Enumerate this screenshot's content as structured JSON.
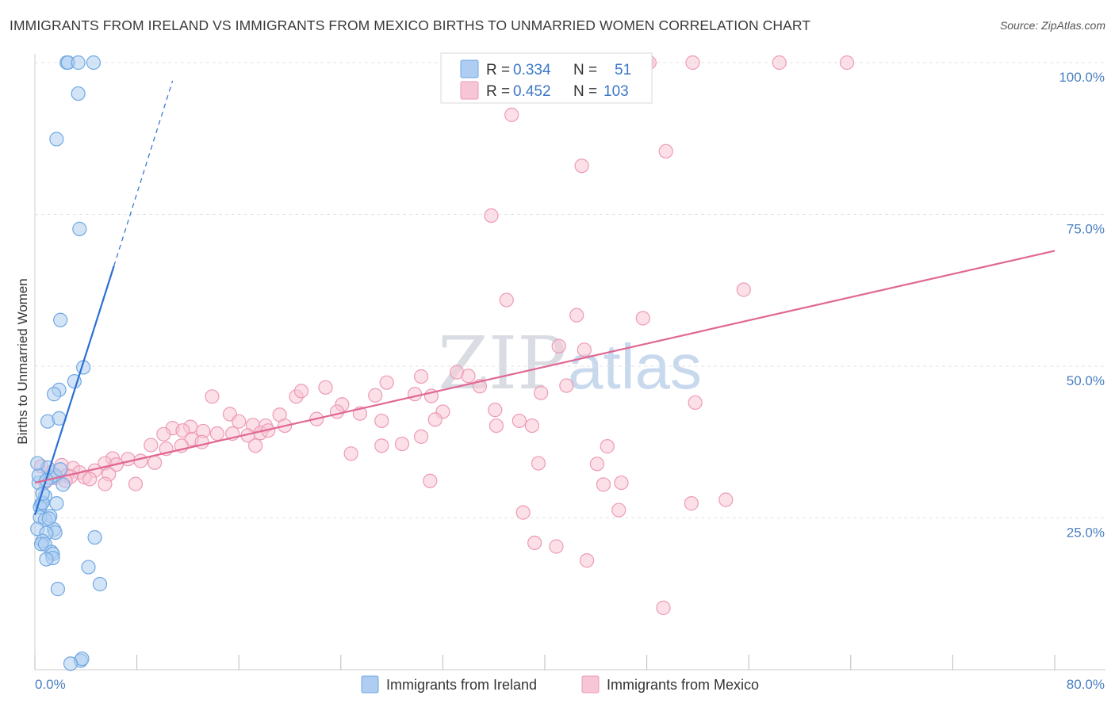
{
  "title": "IMMIGRANTS FROM IRELAND VS IMMIGRANTS FROM MEXICO BIRTHS TO UNMARRIED WOMEN CORRELATION CHART",
  "source": "Source: ZipAtlas.com",
  "watermark": {
    "zip": "ZIP",
    "atlas": "atlas"
  },
  "chart_data": {
    "type": "scatter",
    "xlabel": "",
    "ylabel": "Births to Unmarried Women",
    "xlim": [
      0,
      80
    ],
    "ylim": [
      0,
      100
    ],
    "x_tick_labels": {
      "min": "0.0%",
      "max": "80.0%"
    },
    "y_ticks": [
      {
        "value": 25,
        "label": "25.0%"
      },
      {
        "value": 50,
        "label": "50.0%"
      },
      {
        "value": 75,
        "label": "75.0%"
      },
      {
        "value": 100,
        "label": "100.0%"
      }
    ],
    "grid": true,
    "legend_position": "top-center",
    "series": [
      {
        "name": "Immigrants from Ireland",
        "color": "#6fa8e3",
        "fill": "#aecdf0",
        "line_color": "#2b6fd4",
        "R": "0.334",
        "N": "51",
        "trend": {
          "x0": 0.0,
          "y0": 25.5,
          "x1": 6.2,
          "y1": 66.5,
          "dash_to_x": 10.8,
          "dash_to_y": 97.0
        },
        "points": [
          [
            2.5,
            100.0
          ],
          [
            2.6,
            100.0
          ],
          [
            3.4,
            100.0
          ],
          [
            4.6,
            100.0
          ],
          [
            3.4,
            94.9
          ],
          [
            1.7,
            87.4
          ],
          [
            3.5,
            72.6
          ],
          [
            2.0,
            57.6
          ],
          [
            3.8,
            49.8
          ],
          [
            3.1,
            47.5
          ],
          [
            1.9,
            46.1
          ],
          [
            1.5,
            45.4
          ],
          [
            1.0,
            40.9
          ],
          [
            1.9,
            41.4
          ],
          [
            0.3,
            30.8
          ],
          [
            1.2,
            31.6
          ],
          [
            1.6,
            32.0
          ],
          [
            2.2,
            30.5
          ],
          [
            1.0,
            33.3
          ],
          [
            2.0,
            33.0
          ],
          [
            0.5,
            27.3
          ],
          [
            0.8,
            28.6
          ],
          [
            0.4,
            26.8
          ],
          [
            1.7,
            27.4
          ],
          [
            0.6,
            27.5
          ],
          [
            1.2,
            25.3
          ],
          [
            0.4,
            25.1
          ],
          [
            0.8,
            24.7
          ],
          [
            0.2,
            23.2
          ],
          [
            1.5,
            23.1
          ],
          [
            1.6,
            22.6
          ],
          [
            0.9,
            22.5
          ],
          [
            0.6,
            21.2
          ],
          [
            0.5,
            20.7
          ],
          [
            0.8,
            20.7
          ],
          [
            4.7,
            21.8
          ],
          [
            1.3,
            19.4
          ],
          [
            1.4,
            19.1
          ],
          [
            1.4,
            18.4
          ],
          [
            0.9,
            18.2
          ],
          [
            4.2,
            16.9
          ],
          [
            5.1,
            14.1
          ],
          [
            1.8,
            13.3
          ],
          [
            3.6,
            1.5
          ],
          [
            3.7,
            1.8
          ],
          [
            2.8,
            1.0
          ],
          [
            0.3,
            32.0
          ],
          [
            0.9,
            31.2
          ],
          [
            1.1,
            24.9
          ],
          [
            0.6,
            29.0
          ],
          [
            0.2,
            34.0
          ]
        ]
      },
      {
        "name": "Immigrants from Mexico",
        "color": "#ee9ab5",
        "fill": "#f7c6d6",
        "line_color": "#e06793",
        "R": "0.452",
        "N": "103",
        "trend": {
          "x0": 0.0,
          "y0": 30.8,
          "x1": 80.0,
          "y1": 69.0
        },
        "points": [
          [
            48.0,
            100.0
          ],
          [
            48.2,
            100.0
          ],
          [
            51.6,
            100.0
          ],
          [
            58.4,
            100.0
          ],
          [
            63.7,
            100.0
          ],
          [
            37.4,
            91.4
          ],
          [
            49.5,
            85.4
          ],
          [
            42.9,
            83.0
          ],
          [
            35.8,
            74.8
          ],
          [
            55.6,
            62.6
          ],
          [
            37.0,
            60.9
          ],
          [
            42.5,
            58.4
          ],
          [
            47.7,
            57.9
          ],
          [
            41.1,
            53.3
          ],
          [
            43.1,
            52.7
          ],
          [
            33.1,
            49.0
          ],
          [
            34.0,
            48.4
          ],
          [
            30.3,
            48.3
          ],
          [
            27.6,
            47.3
          ],
          [
            22.8,
            46.5
          ],
          [
            41.7,
            46.8
          ],
          [
            34.9,
            46.7
          ],
          [
            13.9,
            45.0
          ],
          [
            20.5,
            45.0
          ],
          [
            20.9,
            45.9
          ],
          [
            26.7,
            45.2
          ],
          [
            29.8,
            45.4
          ],
          [
            31.1,
            45.1
          ],
          [
            39.7,
            45.6
          ],
          [
            51.8,
            44.0
          ],
          [
            24.1,
            43.7
          ],
          [
            23.7,
            42.5
          ],
          [
            25.5,
            42.2
          ],
          [
            19.2,
            42.0
          ],
          [
            36.1,
            42.8
          ],
          [
            32.0,
            42.5
          ],
          [
            15.3,
            42.1
          ],
          [
            22.1,
            41.3
          ],
          [
            16.0,
            40.9
          ],
          [
            17.1,
            40.3
          ],
          [
            18.1,
            40.2
          ],
          [
            19.6,
            40.2
          ],
          [
            12.2,
            40.0
          ],
          [
            10.8,
            39.8
          ],
          [
            11.6,
            39.4
          ],
          [
            13.2,
            39.3
          ],
          [
            17.7,
            39.0
          ],
          [
            18.3,
            39.4
          ],
          [
            27.2,
            41.0
          ],
          [
            31.4,
            41.2
          ],
          [
            36.2,
            40.2
          ],
          [
            38.0,
            41.0
          ],
          [
            39.0,
            40.2
          ],
          [
            14.3,
            38.9
          ],
          [
            15.5,
            38.9
          ],
          [
            16.7,
            38.6
          ],
          [
            10.1,
            38.8
          ],
          [
            12.3,
            38.0
          ],
          [
            13.1,
            37.5
          ],
          [
            9.1,
            37.0
          ],
          [
            27.2,
            36.9
          ],
          [
            30.3,
            38.4
          ],
          [
            28.8,
            37.2
          ],
          [
            11.5,
            36.9
          ],
          [
            10.3,
            36.4
          ],
          [
            17.3,
            36.9
          ],
          [
            24.8,
            35.6
          ],
          [
            44.9,
            36.8
          ],
          [
            6.1,
            34.8
          ],
          [
            7.3,
            34.7
          ],
          [
            8.3,
            34.4
          ],
          [
            9.4,
            34.1
          ],
          [
            5.5,
            34.0
          ],
          [
            6.4,
            33.8
          ],
          [
            2.1,
            33.7
          ],
          [
            3.0,
            33.2
          ],
          [
            4.7,
            32.8
          ],
          [
            1.2,
            32.5
          ],
          [
            2.5,
            32.0
          ],
          [
            3.5,
            32.5
          ],
          [
            2.8,
            31.8
          ],
          [
            5.8,
            32.2
          ],
          [
            3.9,
            31.7
          ],
          [
            1.6,
            31.6
          ],
          [
            4.3,
            31.4
          ],
          [
            2.4,
            31.1
          ],
          [
            0.8,
            30.9
          ],
          [
            5.5,
            30.6
          ],
          [
            7.9,
            30.6
          ],
          [
            31.0,
            31.1
          ],
          [
            46.0,
            30.8
          ],
          [
            44.6,
            30.5
          ],
          [
            51.5,
            27.4
          ],
          [
            54.2,
            28.0
          ],
          [
            38.3,
            25.9
          ],
          [
            45.8,
            26.3
          ],
          [
            39.2,
            20.9
          ],
          [
            40.9,
            20.3
          ],
          [
            43.3,
            18.0
          ],
          [
            49.3,
            10.2
          ],
          [
            39.5,
            34.0
          ],
          [
            44.1,
            33.9
          ],
          [
            0.5,
            33.5
          ]
        ]
      }
    ]
  }
}
